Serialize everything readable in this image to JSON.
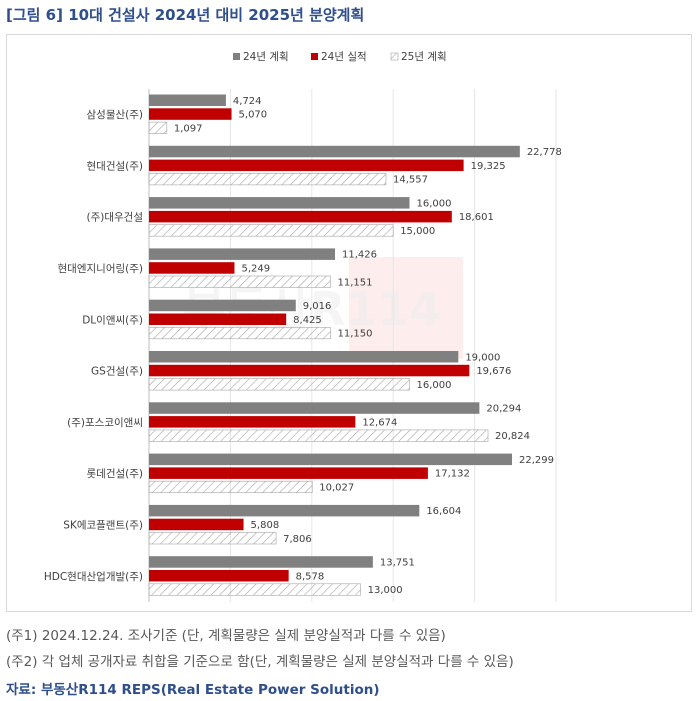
{
  "title": "[그림 6] 10대 건설사 2024년 대비 2025년 분양계획",
  "notes": [
    "(주1) 2024.12.24. 조사기준 (단, 계획물량은 실제 분양실적과 다를 수 있음)",
    "(주2) 각 업체 공개자료 취합을 기준으로 함(단, 계획물량은 실제 분양실적과 다를 수 있음)"
  ],
  "source": "자료: 부동산R114 REPS(Real Estate Power Solution)",
  "watermark": "부동산R114",
  "colors": {
    "plan24": "#808080",
    "actual24": "#c00000",
    "plan25_stroke": "#a6a6a6",
    "title": "#2e4e8c",
    "watermark": "#e84a4a"
  },
  "chart_data": {
    "type": "bar",
    "orientation": "horizontal",
    "categories": [
      "삼성물산(주)",
      "현대건설(주)",
      "(주)대우건설",
      "현대엔지니어링(주)",
      "DL이앤씨(주)",
      "GS건설(주)",
      "(주)포스코이앤씨",
      "롯데건설(주)",
      "SK에코플랜트(주)",
      "HDC현대산업개발(주)"
    ],
    "series": [
      {
        "name": "24년 계획",
        "style": "solid-gray",
        "values": [
          4724,
          22778,
          16000,
          11426,
          9016,
          19000,
          20294,
          22299,
          16604,
          13751
        ],
        "labels": [
          "4,724",
          "22,778",
          "16,000",
          "11,426",
          "9,016",
          "19,000",
          "20,294",
          "22,299",
          "16,604",
          "13,751"
        ]
      },
      {
        "name": "24년 실적",
        "style": "solid-red",
        "values": [
          5070,
          19325,
          18601,
          5249,
          8425,
          19676,
          12674,
          17132,
          5808,
          8578
        ],
        "labels": [
          "5,070",
          "19,325",
          "18,601",
          "5,249",
          "8,425",
          "19,676",
          "12,674",
          "17,132",
          "5,808",
          "8,578"
        ]
      },
      {
        "name": "25년 계획",
        "style": "hatched",
        "values": [
          1097,
          14557,
          15000,
          11151,
          11150,
          16000,
          20824,
          10027,
          7806,
          13000
        ],
        "labels": [
          "1,097",
          "14,557",
          "15,000",
          "11,151",
          "11,150",
          "16,000",
          "20,824",
          "10,027",
          "7,806",
          "13,000"
        ]
      }
    ],
    "xlim": [
      0,
      25000
    ],
    "grid": "vertical",
    "legend": "top-center",
    "data_labels": true
  }
}
